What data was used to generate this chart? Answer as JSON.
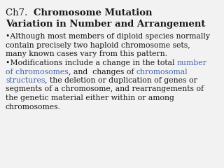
{
  "background_color": "#f2f2f2",
  "text_color": "#1a1a1a",
  "blue_color": "#4466aa",
  "title_ch_text": "Ch7.  ",
  "title_main_text": "Chromosome Mutation",
  "title_sub_text": "Variation in Number and Arrangement",
  "font_size_title": 9.5,
  "font_size_body": 7.8,
  "bullet1_lines": [
    "•Although most members of diploid species normally",
    "contain precisely two haploid chromosome sets,",
    "many known cases vary from this pattern."
  ],
  "bullet2_lines": [
    [
      [
        "•Modifications include a change in the total ",
        "#1a1a1a"
      ],
      [
        "number",
        "#4466aa"
      ]
    ],
    [
      [
        "of chromosomes",
        "#4466aa"
      ],
      [
        ", and  changes of ",
        "#1a1a1a"
      ],
      [
        "chromosomal",
        "#4466aa"
      ]
    ],
    [
      [
        "structures",
        "#4466aa"
      ],
      [
        ", the deletion or duplication of genes or",
        "#1a1a1a"
      ]
    ],
    [
      [
        "segments of a chromosome, and rearrangements of",
        "#1a1a1a"
      ]
    ],
    [
      [
        "the genetic material either within or among",
        "#1a1a1a"
      ]
    ],
    [
      [
        "chromosomes.",
        "#1a1a1a"
      ]
    ]
  ]
}
